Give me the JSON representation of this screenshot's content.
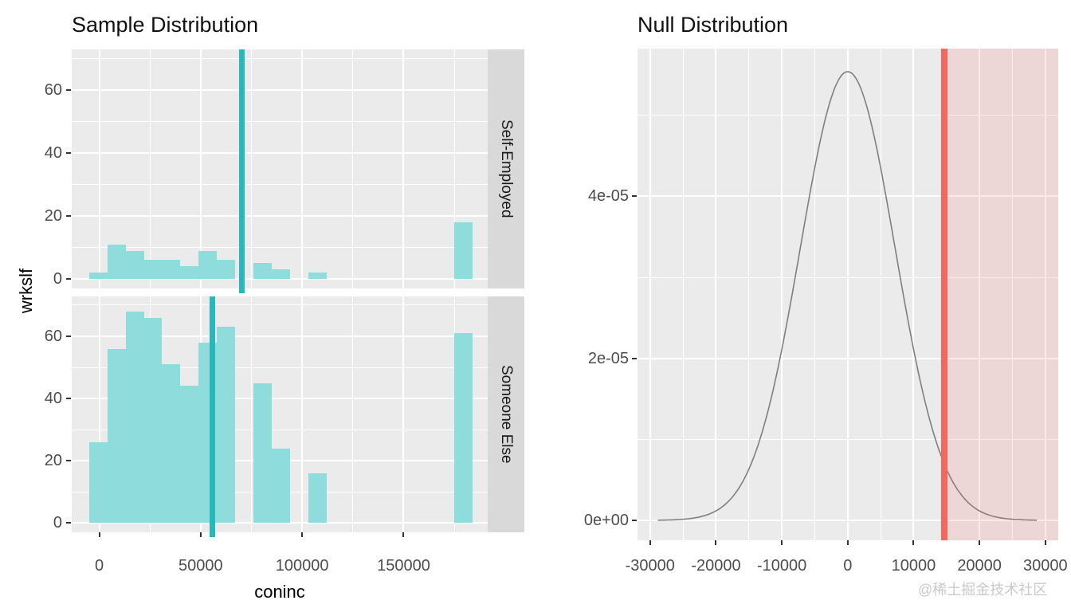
{
  "watermark": {
    "text": "@稀土掘金技术社区",
    "color": "#C9C9C9"
  },
  "chart_data": [
    {
      "type": "bar",
      "subtype": "faceted-histogram",
      "title": "Sample Distribution",
      "xlabel": "coninc",
      "ylabel": "wrkslf",
      "panel_bg": "#EBEBEB",
      "strip_bg": "#D9D9D9",
      "grid_color": "#FFFFFF",
      "bar_color": "#8FDCDD",
      "mean_line_color": "#29B7BC",
      "x_ticks": [
        0,
        50000,
        100000,
        150000
      ],
      "x_minor_ticks": [
        25000,
        75000,
        125000,
        175000
      ],
      "y_ticks": [
        0,
        20,
        40,
        60
      ],
      "y_minor_ticks": [
        10,
        30,
        50,
        70
      ],
      "xlim": [
        -13560,
        191430
      ],
      "ylim": [
        -3,
        72.8
      ],
      "bin_start": -5000,
      "bin_width": 9000,
      "facets": [
        {
          "label": "Self-Employed",
          "mean_line": 70200,
          "counts": [
            2,
            11,
            9,
            6,
            6,
            4,
            9,
            6,
            0,
            5,
            3,
            0,
            2,
            0,
            0,
            0,
            0,
            0,
            0,
            0,
            18
          ]
        },
        {
          "label": "Someone Else",
          "mean_line": 55600,
          "counts": [
            26,
            56,
            68,
            66,
            51,
            44,
            58,
            63,
            0,
            45,
            24,
            0,
            16,
            0,
            0,
            0,
            0,
            0,
            0,
            0,
            61
          ]
        }
      ]
    },
    {
      "type": "line",
      "subtype": "density",
      "title": "Null Distribution",
      "xlabel": "",
      "ylabel": "",
      "panel_bg": "#EBEBEB",
      "grid_color": "#FFFFFF",
      "curve_color": "#7F7F7F",
      "cutoff_color": "#F4675E",
      "shade_color": "rgba(240,100,95,0.15)",
      "x_ticks": [
        -30000,
        -20000,
        -10000,
        0,
        10000,
        20000,
        30000
      ],
      "x_minor_ticks": [
        -25000,
        -15000,
        -5000,
        5000,
        15000,
        25000
      ],
      "y_ticks": [
        {
          "label": "0e+00",
          "value": 0
        },
        {
          "label": "2e-05",
          "value": 2e-05
        },
        {
          "label": "4e-05",
          "value": 4e-05
        }
      ],
      "y_minor_ticks": [
        1e-05,
        3e-05,
        5e-05
      ],
      "xlim": [
        -31910,
        31960
      ],
      "ylim": [
        -2.46e-06,
        5.824e-05
      ],
      "curve": {
        "shape": "normal",
        "mean": 0,
        "sd": 7200,
        "peak": 5.54e-05,
        "x_min": -28800,
        "x_max": 28900
      },
      "cutoff": 14700,
      "shade_from": 14700
    }
  ]
}
